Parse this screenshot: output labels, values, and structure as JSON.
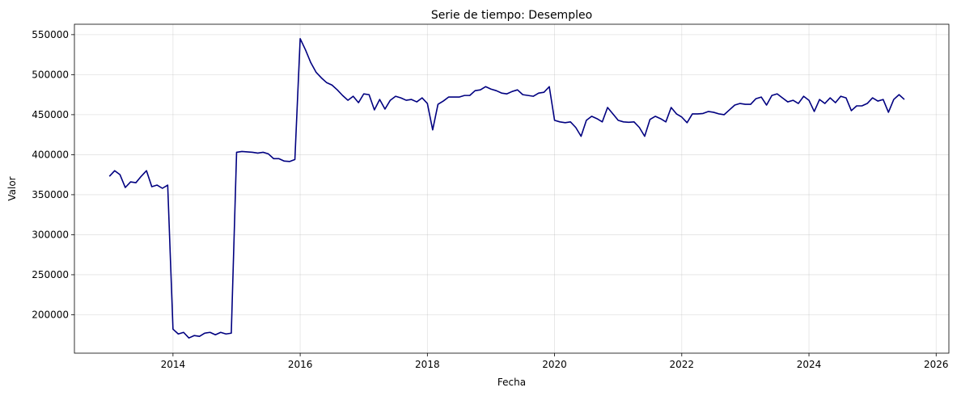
{
  "chart_data": {
    "type": "line",
    "title": "Serie de tiempo: Desempleo",
    "xlabel": "Fecha",
    "ylabel": "Valor",
    "xlim": [
      2012.45,
      2026.2
    ],
    "ylim": [
      152000,
      563000
    ],
    "xticks": [
      2014,
      2016,
      2018,
      2020,
      2022,
      2024,
      2026
    ],
    "xtick_labels": [
      "2014",
      "2016",
      "2018",
      "2020",
      "2022",
      "2024",
      "2026"
    ],
    "yticks": [
      200000,
      250000,
      300000,
      350000,
      400000,
      450000,
      500000,
      550000
    ],
    "ytick_labels": [
      "200000",
      "250000",
      "300000",
      "350000",
      "400000",
      "450000",
      "500000",
      "550000"
    ],
    "grid": true,
    "series": [
      {
        "name": "",
        "color": "#000080",
        "start": "2013-01",
        "frequency": "monthly",
        "values": [
          373000,
          380000,
          375000,
          359000,
          366000,
          365000,
          373000,
          380000,
          360000,
          362000,
          358000,
          362000,
          182000,
          176000,
          178000,
          171000,
          174000,
          173000,
          177000,
          178000,
          175000,
          178000,
          176000,
          177000,
          403000,
          404000,
          403500,
          403000,
          402000,
          403000,
          401000,
          395000,
          395000,
          392000,
          391500,
          394000,
          545000,
          531000,
          515000,
          503000,
          496000,
          490000,
          487000,
          481000,
          474000,
          468000,
          473000,
          465000,
          476000,
          475000,
          456000,
          469000,
          457000,
          468000,
          473000,
          471000,
          468000,
          469000,
          466000,
          471000,
          464000,
          431000,
          463000,
          467000,
          472000,
          472000,
          472000,
          474000,
          474000,
          480000,
          481000,
          485000,
          482000,
          480000,
          477000,
          476000,
          479000,
          481000,
          475000,
          474000,
          473000,
          477000,
          478000,
          485000,
          443000,
          441000,
          440000,
          441000,
          434000,
          423000,
          443000,
          448000,
          445000,
          441000,
          459000,
          451000,
          443000,
          441000,
          440500,
          441000,
          434000,
          423000,
          444000,
          448000,
          445000,
          441000,
          459000,
          451000,
          447000,
          440000,
          451000,
          451000,
          451500,
          454000,
          453000,
          451000,
          450000,
          456000,
          462000,
          464000,
          463000,
          463000,
          470000,
          472000,
          462000,
          474000,
          476000,
          471000,
          466000,
          468000,
          464000,
          473000,
          468000,
          454000,
          469000,
          464000,
          471000,
          465000,
          473000,
          471000,
          455000,
          461000,
          461000,
          464000,
          471000,
          467000,
          469000,
          453000,
          469000,
          475000,
          469000
        ]
      }
    ]
  }
}
